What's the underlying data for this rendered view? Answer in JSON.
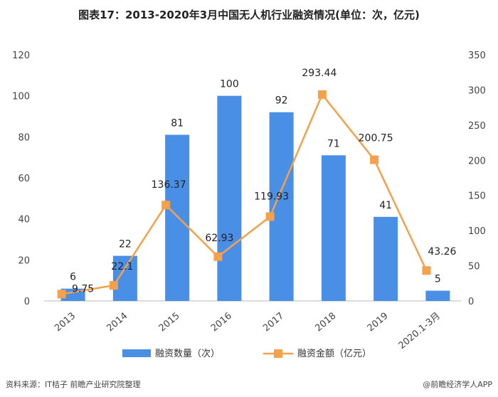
{
  "title": "图表17：2013-2020年3月中国无人机行业融资情况(单位：次，亿元)",
  "source": "资料来源：IT桔子 前瞻产业研究院整理",
  "credit": "@前瞻经济学人APP",
  "colors": {
    "bar": "#4a8fe6",
    "line": "#f5a04a",
    "grid": "#dddddd"
  },
  "chart_data": {
    "type": "bar+line",
    "categories": [
      "2013",
      "2014",
      "2015",
      "2016",
      "2017",
      "2018",
      "2019",
      "2020.1-3月"
    ],
    "series": [
      {
        "name": "融资数量（次）",
        "type": "bar",
        "axis": "left",
        "values": [
          6,
          22,
          81,
          100,
          92,
          71,
          41,
          5
        ],
        "labels": [
          "6",
          "22",
          "81",
          "100",
          "92",
          "71",
          "41",
          "5"
        ]
      },
      {
        "name": "融资金额（亿元）",
        "type": "line",
        "axis": "right",
        "values": [
          9.75,
          22.1,
          136.37,
          62.93,
          119.93,
          293.44,
          200.75,
          43.26
        ],
        "labels": [
          "9.75",
          "22.1",
          "136.37",
          "62.93",
          "119.93",
          "293.44",
          "200.75",
          "43.26"
        ]
      }
    ],
    "y_left": {
      "range": [
        0,
        120
      ],
      "ticks": [
        "0",
        "20",
        "40",
        "60",
        "80",
        "100",
        "120"
      ]
    },
    "y_right": {
      "range": [
        0,
        350
      ],
      "ticks": [
        "0",
        "50",
        "100",
        "150",
        "200",
        "250",
        "300",
        "350"
      ]
    },
    "legend_position": "bottom",
    "grid": false
  }
}
